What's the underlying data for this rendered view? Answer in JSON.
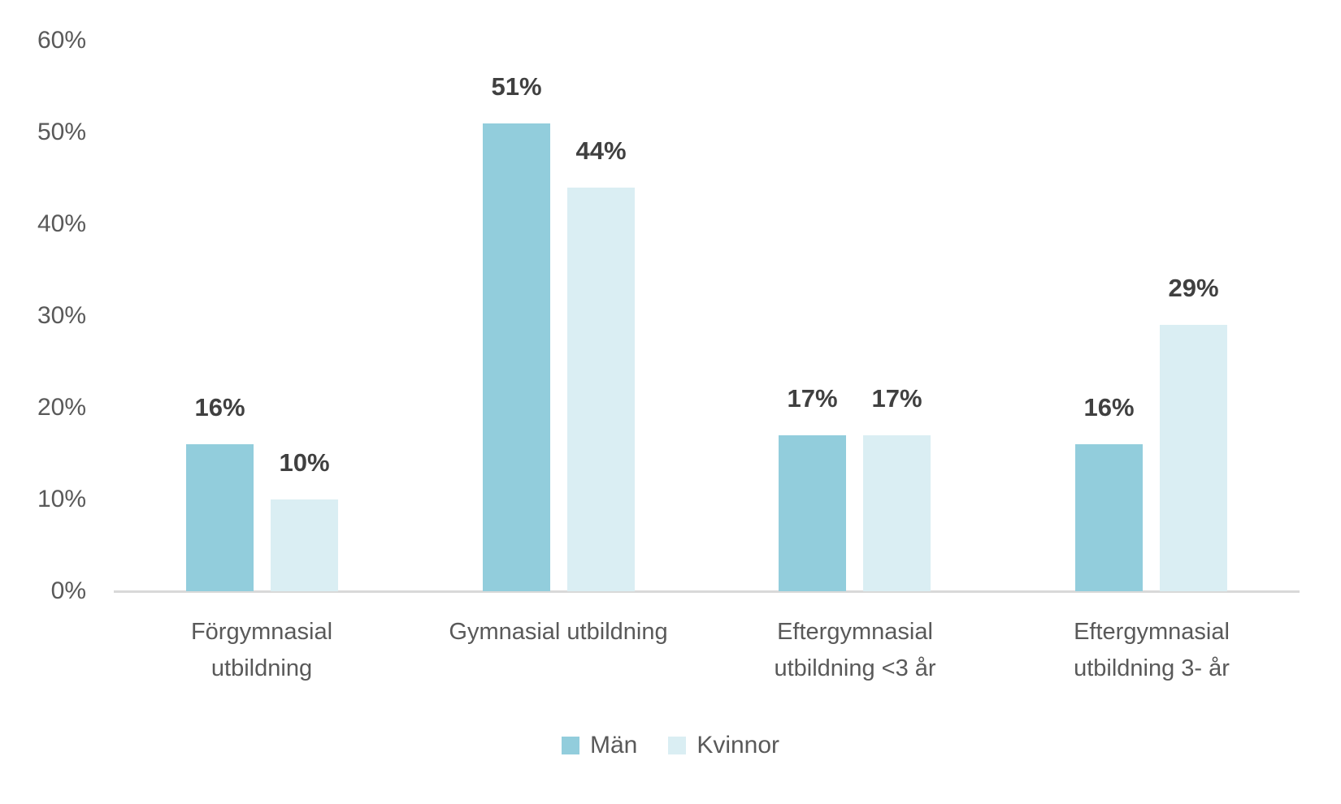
{
  "chart_data": {
    "type": "bar",
    "title": "",
    "xlabel": "",
    "ylabel": "",
    "categories": [
      "Förgymnasial utbildning",
      "Gymnasial utbildning",
      "Eftergymnasial utbildning <3 år",
      "Eftergymnasial utbildning 3- år"
    ],
    "categories_display": [
      "Förgymnasial\nutbildning",
      "Gymnasial utbildning",
      "Eftergymnasial\nutbildning <3 år",
      "Eftergymnasial\nutbildning 3- år"
    ],
    "series": [
      {
        "name": "Män",
        "slug": "man",
        "values": [
          16,
          51,
          17,
          16
        ],
        "labels": [
          "16%",
          "51%",
          "17%",
          "16%"
        ],
        "color": "#92CDDC"
      },
      {
        "name": "Kvinnor",
        "slug": "kvinnor",
        "values": [
          10,
          44,
          17,
          29
        ],
        "labels": [
          "10%",
          "44%",
          "17%",
          "29%"
        ],
        "color": "#DAEEF3"
      }
    ],
    "ylim": [
      0,
      60
    ],
    "yticks": [
      "0%",
      "10%",
      "20%",
      "30%",
      "40%",
      "50%",
      "60%"
    ],
    "grid": false,
    "data_labels": true,
    "legend_position": "bottom"
  },
  "colors": {
    "background": "#FFFFFF",
    "axis_line": "#D9D9D9",
    "tick_text": "#595959",
    "category_text": "#595959",
    "data_label_text": "#404040",
    "legend_text": "#595959"
  }
}
